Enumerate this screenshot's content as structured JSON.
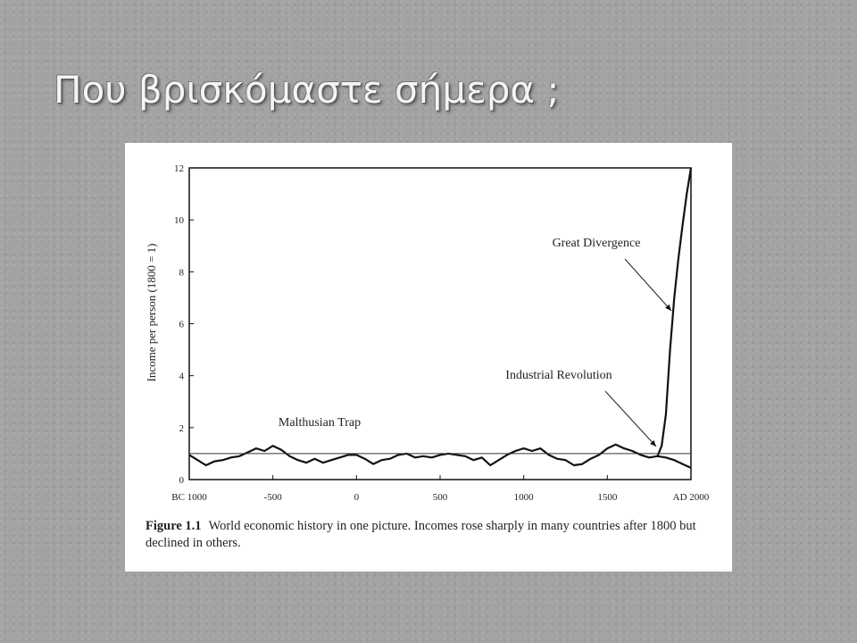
{
  "slide": {
    "title": "Που βρισκόμαστε σήμερα ;"
  },
  "chart_data": {
    "type": "line",
    "ylabel": "Income per person (1800 = 1)",
    "xlim": [
      -1000,
      2000
    ],
    "xticks": [
      {
        "value": -1000,
        "label": "BC 1000"
      },
      -500,
      0,
      500,
      1000,
      1500,
      {
        "value": 2000,
        "label": "AD 2000"
      }
    ],
    "ylim": [
      0,
      12
    ],
    "yticks": [
      0,
      2,
      4,
      6,
      8,
      10,
      12
    ],
    "annotations": [
      "Great Divergence",
      "Industrial Revolution",
      "Malthusian Trap"
    ],
    "caption_label": "Figure 1.1",
    "caption": "World economic history in one picture. Incomes rose sharply in many countries after 1800 but declined in others.",
    "series": [
      {
        "color": "#111111",
        "width": 2.2,
        "x": [
          -1000,
          -950,
          -900,
          -850,
          -800,
          -750,
          -700,
          -650,
          -600,
          -550,
          -500,
          -450,
          -400,
          -350,
          -300,
          -250,
          -200,
          -150,
          -100,
          -50,
          0,
          50,
          100,
          150,
          200,
          250,
          300,
          350,
          400,
          450,
          500,
          550,
          600,
          650,
          700,
          750,
          800,
          850,
          900,
          950,
          1000,
          1050,
          1100,
          1150,
          1200,
          1250,
          1300,
          1350,
          1400,
          1450,
          1500,
          1550,
          1600,
          1650,
          1700,
          1750,
          1800
        ],
        "values": [
          0.95,
          0.75,
          0.55,
          0.7,
          0.75,
          0.85,
          0.9,
          1.05,
          1.2,
          1.1,
          1.3,
          1.15,
          0.9,
          0.75,
          0.65,
          0.8,
          0.65,
          0.75,
          0.85,
          0.95,
          0.95,
          0.8,
          0.6,
          0.75,
          0.8,
          0.95,
          1.0,
          0.85,
          0.9,
          0.85,
          0.95,
          1.0,
          0.95,
          0.9,
          0.75,
          0.85,
          0.55,
          0.75,
          0.95,
          1.1,
          1.2,
          1.1,
          1.2,
          0.95,
          0.8,
          0.75,
          0.55,
          0.6,
          0.8,
          0.95,
          1.2,
          1.35,
          1.2,
          1.1,
          0.95,
          0.85,
          0.9
        ]
      },
      {
        "color": "#111111",
        "width": 2.2,
        "x": [
          1800,
          1825,
          1850,
          1875,
          1900,
          1925,
          1950,
          1975,
          2000
        ],
        "values": [
          0.9,
          1.3,
          2.5,
          5,
          7,
          8.5,
          9.8,
          11,
          12
        ]
      },
      {
        "color": "#111111",
        "width": 2.2,
        "x": [
          1800,
          1850,
          1900,
          1950,
          2000
        ],
        "values": [
          0.9,
          0.85,
          0.75,
          0.6,
          0.45
        ]
      },
      {
        "color": "#333333",
        "width": 1,
        "x": [
          -1000,
          2000
        ],
        "values": [
          1,
          1
        ]
      }
    ]
  }
}
